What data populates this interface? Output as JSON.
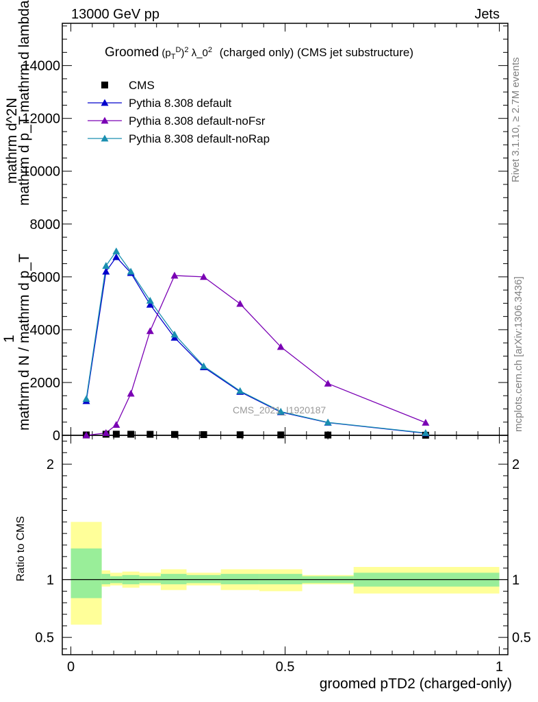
{
  "header": {
    "energy_label": "13000 GeV pp",
    "type_label": "Jets"
  },
  "side_labels": {
    "rivet": "Rivet 3.1.10, ≥ 2.7M events",
    "mcplots": "mcplots.cern.ch [arXiv:1306.3436]"
  },
  "chart_data": {
    "type": "line",
    "title": "Groomed (p_T^D)^2 λ_0^2  (charged only) (CMS jet substructure)",
    "title_text": "(charged only) (CMS jet substructure)",
    "ylabel": "1 / mathrm d N / mathrm d p_T mathrm d^2 N / mathrm d p_T mathrm d lambda",
    "ylabel_lines": [
      "mathrm d^2N",
      "mathrm d p_T mathrm d lambda",
      "1",
      "mathrm d N / mathrm d p_T"
    ],
    "xlabel": "groomed pTD2 (charged-only)",
    "watermark": "CMS_2021_I1920187",
    "xlim": [
      -0.02,
      1.02
    ],
    "ylim": [
      0,
      15600
    ],
    "x_ticks": [
      0,
      0.5,
      1
    ],
    "x_tick_labels": [
      "0",
      "0.5",
      "1"
    ],
    "y_ticks": [
      0,
      2000,
      4000,
      6000,
      8000,
      10000,
      12000,
      14000
    ],
    "y_tick_labels": [
      "0",
      "2000",
      "4000",
      "6000",
      "8000",
      "10000",
      "12000",
      "14000"
    ],
    "grid": false,
    "legend_position": "top-left",
    "x": [
      0.036,
      0.082,
      0.106,
      0.14,
      0.185,
      0.242,
      0.31,
      0.395,
      0.49,
      0.6,
      0.828
    ],
    "series": [
      {
        "name": "CMS",
        "marker": "square",
        "color": "#000000",
        "values": [
          14,
          42,
          43,
          41,
          38,
          33,
          27,
          21,
          16,
          11,
          4
        ]
      },
      {
        "name": "Pythia 8.308 default",
        "marker": "triangle",
        "color": "#0000cc",
        "values": [
          1300,
          6200,
          6750,
          6150,
          4950,
          3700,
          2580,
          1650,
          880,
          480,
          80
        ]
      },
      {
        "name": "Pythia 8.308 default-noFsr",
        "marker": "triangle",
        "color": "#7a00b4",
        "values": [
          0,
          90,
          400,
          1580,
          3950,
          6050,
          6000,
          4980,
          3350,
          1960,
          480
        ]
      },
      {
        "name": "Pythia 8.308 default-noRap",
        "marker": "triangle",
        "color": "#1a8fb0",
        "values": [
          1380,
          6420,
          6970,
          6200,
          5100,
          3820,
          2620,
          1680,
          900,
          490,
          90
        ]
      }
    ],
    "ratio": {
      "ylabel": "Ratio to CMS",
      "ylim": [
        0.35,
        2.25
      ],
      "y_ticks": [
        0.5,
        1,
        2
      ],
      "y_tick_labels": [
        "0.5",
        "1",
        "2"
      ],
      "bins": [
        {
          "lo": 0.0,
          "hi": 0.072,
          "stat": [
            0.84,
            1.27
          ],
          "total": [
            0.61,
            1.5
          ]
        },
        {
          "lo": 0.072,
          "hi": 0.092,
          "stat": [
            0.96,
            1.05
          ],
          "total": [
            0.94,
            1.08
          ]
        },
        {
          "lo": 0.092,
          "hi": 0.12,
          "stat": [
            0.97,
            1.03
          ],
          "total": [
            0.95,
            1.06
          ]
        },
        {
          "lo": 0.12,
          "hi": 0.16,
          "stat": [
            0.96,
            1.04
          ],
          "total": [
            0.93,
            1.07
          ]
        },
        {
          "lo": 0.16,
          "hi": 0.21,
          "stat": [
            0.97,
            1.03
          ],
          "total": [
            0.95,
            1.06
          ]
        },
        {
          "lo": 0.21,
          "hi": 0.27,
          "stat": [
            0.96,
            1.05
          ],
          "total": [
            0.91,
            1.09
          ]
        },
        {
          "lo": 0.27,
          "hi": 0.35,
          "stat": [
            0.97,
            1.04
          ],
          "total": [
            0.95,
            1.06
          ]
        },
        {
          "lo": 0.35,
          "hi": 0.44,
          "stat": [
            0.96,
            1.05
          ],
          "total": [
            0.91,
            1.09
          ]
        },
        {
          "lo": 0.44,
          "hi": 0.54,
          "stat": [
            0.96,
            1.05
          ],
          "total": [
            0.9,
            1.09
          ]
        },
        {
          "lo": 0.54,
          "hi": 0.66,
          "stat": [
            0.97,
            1.03
          ],
          "total": [
            0.96,
            1.04
          ]
        },
        {
          "lo": 0.66,
          "hi": 1.0,
          "stat": [
            0.94,
            1.06
          ],
          "total": [
            0.88,
            1.11
          ]
        }
      ],
      "stat_color": "#99ee99",
      "total_color": "#ffff99"
    }
  }
}
